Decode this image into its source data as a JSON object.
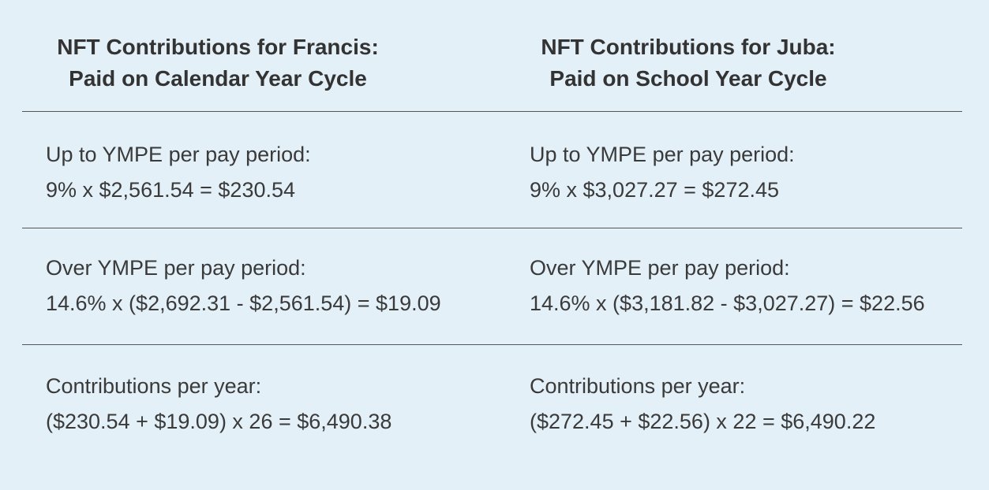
{
  "columns": [
    {
      "title_line1": "NFT Contributions for Francis:",
      "title_line2": "Paid on Calendar Year Cycle",
      "rows": [
        {
          "label": "Up to YMPE per pay period:",
          "formula": "9% x $2,561.54 = $230.54"
        },
        {
          "label": "Over YMPE per pay period:",
          "formula": "14.6% x ($2,692.31 - $2,561.54) = $19.09"
        },
        {
          "label": "Contributions per year:",
          "formula": "($230.54 + $19.09) x 26 = $6,490.38"
        }
      ]
    },
    {
      "title_line1": "NFT Contributions for Juba:",
      "title_line2": "Paid on School Year Cycle",
      "rows": [
        {
          "label": "Up to YMPE per pay period:",
          "formula": "9% x $3,027.27 = $272.45"
        },
        {
          "label": "Over YMPE per pay period:",
          "formula": "14.6% x ($3,181.82 - $3,027.27) = $22.56"
        },
        {
          "label": "Contributions per year:",
          "formula": "($272.45 + $22.56) x 22 = $6,490.22"
        }
      ]
    }
  ],
  "colors": {
    "background": "#e3f0f8",
    "text": "#3a3a3a",
    "rule": "#555555"
  }
}
